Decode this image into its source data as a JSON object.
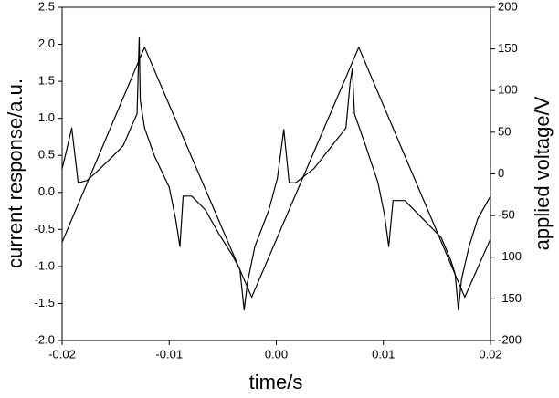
{
  "chart_data": {
    "type": "line",
    "x_label": "time/s",
    "y_label": "current response/a.u.",
    "y2_label": "applied voltage/V",
    "xlim": [
      -0.02,
      0.02
    ],
    "xticks": [
      -0.02,
      -0.01,
      {
        "value": 0,
        "label": "0.00"
      },
      0.01,
      0.02
    ],
    "ylim": [
      -2.0,
      2.5
    ],
    "yticks": [
      {
        "value": -2,
        "label": "-2.0"
      },
      -1.5,
      {
        "value": -1,
        "label": "-1.0"
      },
      -0.5,
      {
        "value": 0,
        "label": "0.0"
      },
      0.5,
      {
        "value": 1,
        "label": "1.0"
      },
      1.5,
      {
        "value": 2,
        "label": "2.0"
      },
      2.5
    ],
    "y2lim": [
      -200,
      200
    ],
    "y2ticks": [
      -200,
      -150,
      -100,
      -50,
      0,
      50,
      100,
      150,
      200
    ],
    "grid": false,
    "series": [
      {
        "color": "#000000",
        "axis": "y",
        "x": [
          -0.02,
          -0.0196,
          -0.0191,
          -0.0188,
          -0.0185,
          -0.0177,
          -0.0169,
          -0.0156,
          -0.0143,
          -0.0134,
          -0.013,
          -0.0128,
          -0.0127,
          -0.0123,
          -0.0114,
          -0.01,
          -0.0094,
          -0.009,
          -0.0087,
          -0.0079,
          -0.0066,
          -0.0054,
          -0.0041,
          -0.0034,
          -0.003,
          -0.0027,
          -0.002,
          -0.0007,
          0.0001,
          0.0007,
          0.0012,
          0.0018,
          0.0035,
          0.0052,
          0.0065,
          0.0069,
          0.0071,
          0.0073,
          0.0082,
          0.0095,
          0.0101,
          0.0105,
          0.0109,
          0.012,
          0.0137,
          0.0154,
          0.0163,
          0.0167,
          0.017,
          0.0173,
          0.018,
          0.0188,
          0.02
        ],
        "values": [
          0.32,
          0.56,
          0.87,
          0.5,
          0.13,
          0.16,
          0.26,
          0.44,
          0.63,
          0.93,
          1.06,
          2.1,
          1.24,
          0.87,
          0.5,
          0.07,
          -0.36,
          -0.73,
          -0.05,
          -0.05,
          -0.24,
          -0.55,
          -0.85,
          -1.04,
          -1.59,
          -1.22,
          -0.73,
          -0.24,
          0.19,
          0.85,
          0.13,
          0.13,
          0.32,
          0.63,
          0.87,
          1.49,
          1.67,
          1.06,
          0.69,
          0.13,
          -0.3,
          -0.73,
          -0.11,
          -0.11,
          -0.36,
          -0.61,
          -0.92,
          -1.1,
          -1.59,
          -1.17,
          -0.73,
          -0.36,
          -0.05
        ]
      },
      {
        "color": "#000000",
        "axis": "y2",
        "x": [
          -0.02,
          -0.0123,
          -0.0023,
          0.0077,
          0.0176,
          0.02
        ],
        "values": [
          -82,
          152,
          -148,
          152,
          -148,
          -78
        ]
      }
    ]
  }
}
